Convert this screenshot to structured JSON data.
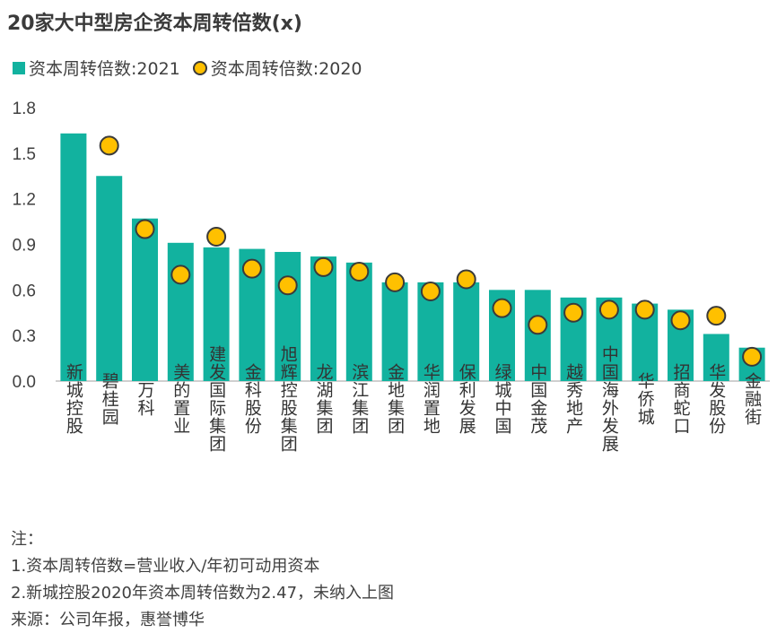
{
  "title": "20家大中型房企资本周转倍数(x)",
  "legend": {
    "bar_label": "资本周转倍数:2021",
    "dot_label": "资本周转倍数:2020"
  },
  "notes": {
    "header": "注：",
    "line1": "1.资本周转倍数=营业收入/年初可动用资本",
    "line2": "2.新城控股2020年资本周转倍数为2.47，未纳入上图",
    "source": "来源：公司年报，惠誉博华"
  },
  "colors": {
    "bar": "#12b29f",
    "dot_fill": "#ffc000",
    "dot_stroke": "#3a3a3a",
    "axis": "#bfbfbf"
  },
  "chart_data": {
    "type": "bar",
    "categories": [
      "新城控股",
      "碧桂园",
      "万科",
      "美的置业",
      "建发国际集团",
      "金科股份",
      "旭辉控股集团",
      "龙湖集团",
      "滨江集团",
      "金地集团",
      "华润置地",
      "保利发展",
      "绿城中国",
      "中国金茂",
      "越秀地产",
      "中国海外发展",
      "华侨城",
      "招商蛇口",
      "华发股份",
      "金融街"
    ],
    "series": [
      {
        "name": "资本周转倍数:2021",
        "type": "bar",
        "values": [
          1.63,
          1.35,
          1.07,
          0.91,
          0.88,
          0.87,
          0.85,
          0.82,
          0.78,
          0.65,
          0.65,
          0.65,
          0.6,
          0.6,
          0.55,
          0.55,
          0.51,
          0.47,
          0.31,
          0.22
        ]
      },
      {
        "name": "资本周转倍数:2020",
        "type": "scatter",
        "values": [
          null,
          1.55,
          1.0,
          0.7,
          0.95,
          0.74,
          0.63,
          0.75,
          0.72,
          0.65,
          0.59,
          0.67,
          0.48,
          0.37,
          0.45,
          0.47,
          0.47,
          0.4,
          0.43,
          0.16
        ]
      }
    ],
    "yticks": [
      "0.0",
      "0.3",
      "0.6",
      "0.9",
      "1.2",
      "1.5",
      "1.8"
    ],
    "ylim": [
      0,
      1.8
    ],
    "grid": false,
    "legend_position": "top-left"
  }
}
